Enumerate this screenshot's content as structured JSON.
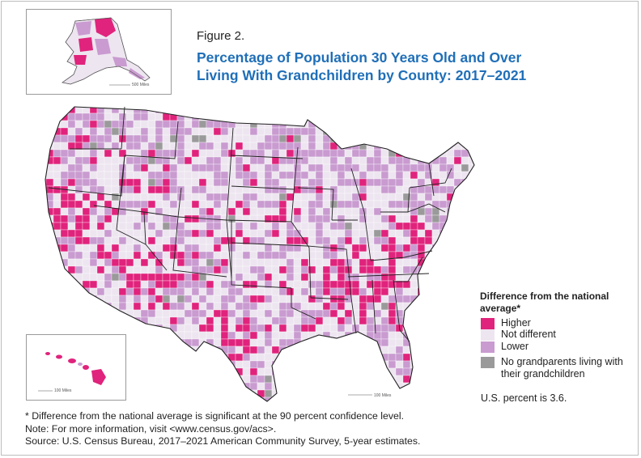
{
  "figure_label": "Figure 2.",
  "title_line1": "Percentage of Population 30 Years Old and Over",
  "title_line2": "Living With Grandchildren by County: 2017–2021",
  "colors": {
    "higher": "#e0237c",
    "not_different": "#ede5f0",
    "lower": "#c99bd0",
    "no_data": "#9a9a9a",
    "title": "#1f6fb8"
  },
  "legend": {
    "title": "Difference from the national average*",
    "items": [
      {
        "key": "higher",
        "label": "Higher"
      },
      {
        "key": "not_different",
        "label": "Not different"
      },
      {
        "key": "lower",
        "label": "Lower"
      },
      {
        "key": "no_data",
        "label": "No grandparents living with their grandchildren"
      }
    ]
  },
  "us_percent_note": "U.S. percent is 3.6.",
  "scale_labels": {
    "alaska": "500 Miles",
    "hawaii": "100 Miles",
    "conus": "100 Miles"
  },
  "notes": [
    "* Difference from the national average is significant at the 90 percent confidence level.",
    "Note: For more information, visit <www.census.gov/acs>.",
    "Source: U.S. Census Bureau, 2017–2021 American Community Survey, 5-year estimates."
  ]
}
